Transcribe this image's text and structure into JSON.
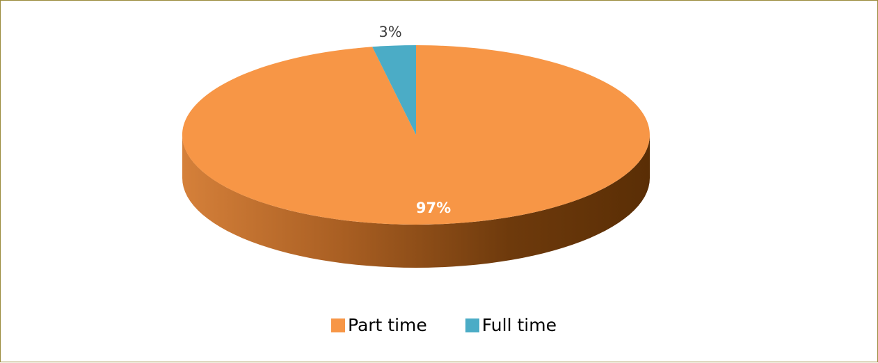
{
  "chart_data": {
    "type": "pie",
    "style": "3d",
    "categories": [
      "Part time",
      "Full time"
    ],
    "values": [
      97,
      3
    ],
    "unit": "%",
    "labels": [
      "97%",
      "3%"
    ],
    "colors": [
      "#F79646",
      "#4BACC6"
    ],
    "legend": {
      "position": "bottom",
      "items": [
        {
          "label": "Part time",
          "color": "#F79646"
        },
        {
          "label": "Full time",
          "color": "#4BACC6"
        }
      ]
    }
  }
}
